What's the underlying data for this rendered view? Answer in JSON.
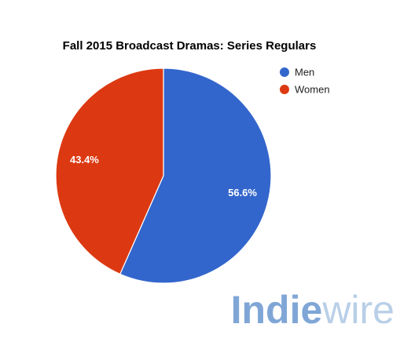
{
  "chart_data": {
    "type": "pie",
    "title": "Fall 2015 Broadcast Dramas: Series Regulars",
    "series": [
      {
        "name": "Men",
        "value": 56.6,
        "label": "56.6%",
        "color": "#3366CC"
      },
      {
        "name": "Women",
        "value": 43.4,
        "label": "43.4%",
        "color": "#DC3912"
      }
    ],
    "legend_position": "right"
  },
  "watermark": {
    "part1": "Indie",
    "part2": "wire",
    "color_part1": "#7FA6D6",
    "color_part2": "#B9CFE8"
  }
}
